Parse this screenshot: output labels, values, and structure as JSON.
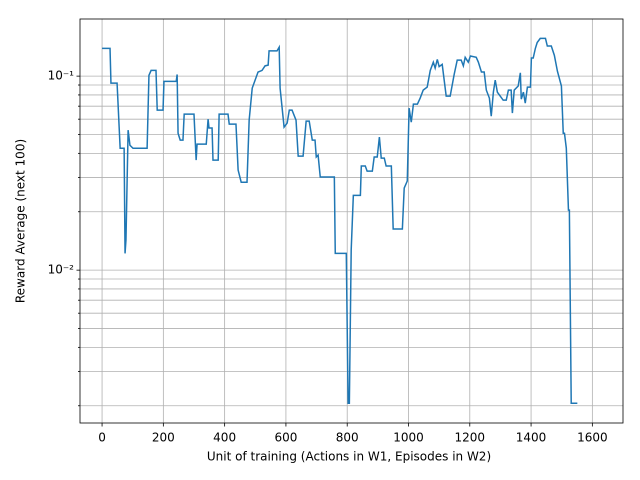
{
  "chart_data": {
    "type": "line",
    "x_label": "Unit of training (Actions in W1, Episodes in W2)",
    "y_label": "Reward Average (next 100)",
    "log_y": true,
    "grid": true,
    "xlim": [
      -72,
      1700
    ],
    "ylim": [
      0.00163,
      0.197
    ],
    "xticks": [
      0,
      200,
      400,
      600,
      800,
      1000,
      1200,
      1400,
      1600
    ],
    "yticks": [
      {
        "value": 0.01,
        "label": "10⁻²"
      },
      {
        "value": 0.1,
        "label": "10⁻¹"
      }
    ],
    "y_minor_ticks": [
      0.002,
      0.003,
      0.004,
      0.005,
      0.006,
      0.007,
      0.008,
      0.009,
      0.02,
      0.03,
      0.04,
      0.05,
      0.06,
      0.07,
      0.08,
      0.09
    ],
    "series": [
      {
        "color": "#1f77b4",
        "x": [
          0,
          26,
          29,
          49,
          59,
          72,
          75,
          78,
          85,
          91,
          101,
          147,
          153,
          160,
          176,
          180,
          199,
          202,
          242,
          245,
          248,
          255,
          264,
          268,
          300,
          307,
          310,
          340,
          346,
          349,
          359,
          362,
          379,
          382,
          411,
          415,
          437,
          444,
          454,
          473,
          480,
          490,
          509,
          522,
          532,
          542,
          545,
          571,
          578,
          581,
          594,
          604,
          611,
          620,
          633,
          640,
          656,
          666,
          676,
          686,
          695,
          699,
          705,
          712,
          758,
          761,
          797,
          803,
          807,
          813,
          820,
          843,
          846,
          859,
          865,
          882,
          888,
          898,
          905,
          911,
          921,
          927,
          944,
          950,
          980,
          986,
          996,
          1002,
          1009,
          1016,
          1029,
          1038,
          1048,
          1061,
          1071,
          1081,
          1087,
          1094,
          1100,
          1110,
          1123,
          1136,
          1149,
          1159,
          1172,
          1179,
          1185,
          1195,
          1202,
          1221,
          1228,
          1238,
          1247,
          1254,
          1264,
          1270,
          1277,
          1283,
          1290,
          1309,
          1319,
          1326,
          1335,
          1339,
          1345,
          1358,
          1365,
          1368,
          1375,
          1381,
          1388,
          1398,
          1401,
          1407,
          1414,
          1420,
          1430,
          1447,
          1453,
          1466,
          1476,
          1486,
          1499,
          1505,
          1509,
          1515,
          1522,
          1525,
          1531,
          1551
        ],
        "values": [
          0.139,
          0.139,
          0.092,
          0.092,
          0.0425,
          0.0425,
          0.0122,
          0.0143,
          0.0527,
          0.044,
          0.0425,
          0.0425,
          0.101,
          0.107,
          0.107,
          0.0668,
          0.0668,
          0.094,
          0.094,
          0.102,
          0.0508,
          0.0468,
          0.0468,
          0.0637,
          0.0637,
          0.0369,
          0.0446,
          0.0446,
          0.06,
          0.054,
          0.054,
          0.0369,
          0.0369,
          0.0637,
          0.0637,
          0.0566,
          0.0566,
          0.0328,
          0.0284,
          0.0284,
          0.0593,
          0.0867,
          0.105,
          0.107,
          0.113,
          0.114,
          0.135,
          0.135,
          0.141,
          0.0867,
          0.0546,
          0.0573,
          0.0668,
          0.0668,
          0.0593,
          0.0387,
          0.0387,
          0.0586,
          0.0586,
          0.0468,
          0.0468,
          0.0383,
          0.0392,
          0.0302,
          0.0302,
          0.0122,
          0.0122,
          0.00206,
          0.00206,
          0.0127,
          0.0243,
          0.0243,
          0.0344,
          0.0344,
          0.0324,
          0.0324,
          0.0383,
          0.0383,
          0.0485,
          0.0378,
          0.0378,
          0.0344,
          0.0344,
          0.0163,
          0.0163,
          0.0265,
          0.0288,
          0.0684,
          0.0579,
          0.0717,
          0.0717,
          0.077,
          0.0847,
          0.0878,
          0.107,
          0.118,
          0.11,
          0.122,
          0.112,
          0.115,
          0.0789,
          0.0789,
          0.102,
          0.121,
          0.121,
          0.113,
          0.125,
          0.118,
          0.127,
          0.125,
          0.118,
          0.105,
          0.105,
          0.0847,
          0.077,
          0.0622,
          0.0827,
          0.0954,
          0.0827,
          0.0752,
          0.0752,
          0.0847,
          0.0847,
          0.0645,
          0.0847,
          0.0889,
          0.104,
          0.0761,
          0.0827,
          0.0726,
          0.0878,
          0.0878,
          0.124,
          0.124,
          0.139,
          0.149,
          0.1565,
          0.1565,
          0.143,
          0.143,
          0.128,
          0.106,
          0.0889,
          0.0508,
          0.0508,
          0.0425,
          0.0204,
          0.0204,
          0.00206,
          0.00206
        ]
      }
    ]
  }
}
